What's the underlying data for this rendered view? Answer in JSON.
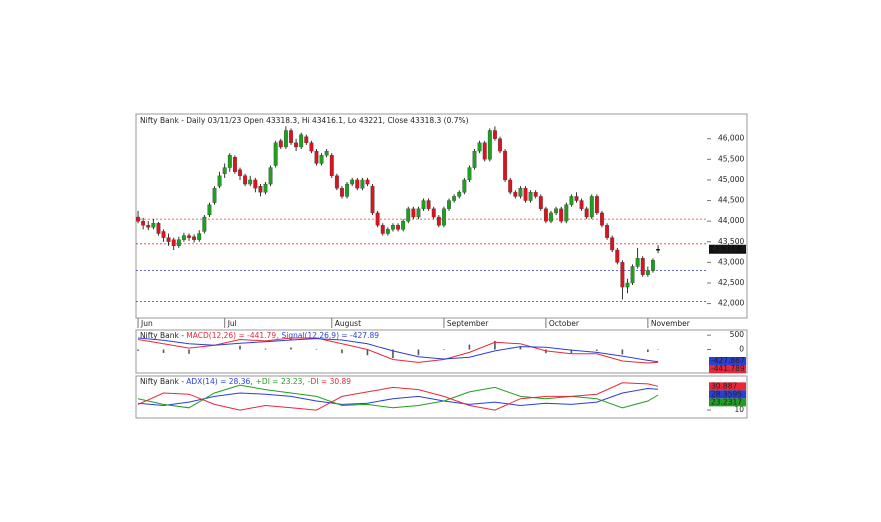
{
  "chart_data": [
    {
      "type": "candlestick",
      "title": "Nifty Bank - Daily 03/11/23 Open 43318.3, Hi 43416.1, Lo 43221, Close 43318.3 (0.7%)",
      "xlim": [
        -0.4,
        111.6
      ],
      "xticks": [
        {
          "value": 0,
          "label": "Jun"
        },
        {
          "value": 17,
          "label": "Jul"
        },
        {
          "value": 38,
          "label": "August"
        },
        {
          "value": 60,
          "label": "September"
        },
        {
          "value": 80,
          "label": "October"
        },
        {
          "value": 100,
          "label": "November"
        }
      ],
      "ylim": [
        41650,
        46600
      ],
      "yticks": [
        {
          "value": 42000,
          "label": "42,000"
        },
        {
          "value": 42500,
          "label": "42,500"
        },
        {
          "value": 43000,
          "label": "43,000"
        },
        {
          "value": 43500,
          "label": "43,500"
        },
        {
          "value": 44000,
          "label": "44,000"
        },
        {
          "value": 44500,
          "label": "44,500"
        },
        {
          "value": 45000,
          "label": "45,000"
        },
        {
          "value": 45500,
          "label": "45,500"
        },
        {
          "value": 46000,
          "label": "46,000"
        }
      ],
      "up_color": "#1f9e1f",
      "down_color": "#d9141e",
      "last_label": "43,318.3",
      "levels": [
        {
          "value": 44050,
          "color": "#e8382e"
        },
        {
          "value": 43450,
          "color": "#e8382e"
        },
        {
          "value": 42800,
          "color": "#3a3ad0"
        },
        {
          "value": 42050,
          "color": "#3a3ad0"
        }
      ],
      "ohlc": [
        [
          44100,
          44250,
          43950,
          44000
        ],
        [
          44000,
          44080,
          43800,
          43900
        ],
        [
          43900,
          44000,
          43780,
          43850
        ],
        [
          43850,
          44050,
          43800,
          43950
        ],
        [
          43950,
          43980,
          43650,
          43700
        ],
        [
          43750,
          43800,
          43500,
          43600
        ],
        [
          43600,
          43700,
          43400,
          43500
        ],
        [
          43550,
          43600,
          43300,
          43400
        ],
        [
          43400,
          43620,
          43350,
          43550
        ],
        [
          43550,
          43720,
          43500,
          43650
        ],
        [
          43650,
          43700,
          43520,
          43600
        ],
        [
          43620,
          43680,
          43480,
          43550
        ],
        [
          43550,
          43780,
          43500,
          43700
        ],
        [
          43750,
          44150,
          43700,
          44100
        ],
        [
          44150,
          44450,
          44100,
          44400
        ],
        [
          44450,
          44850,
          44400,
          44800
        ],
        [
          44850,
          45200,
          44800,
          45100
        ],
        [
          45150,
          45400,
          45050,
          45300
        ],
        [
          45300,
          45650,
          45200,
          45600
        ],
        [
          45550,
          45600,
          45150,
          45200
        ],
        [
          45250,
          45300,
          45000,
          45100
        ],
        [
          45100,
          45150,
          44850,
          44900
        ],
        [
          44900,
          45100,
          44850,
          45000
        ],
        [
          45000,
          45050,
          44700,
          44800
        ],
        [
          44850,
          44900,
          44600,
          44700
        ],
        [
          44700,
          44950,
          44650,
          44900
        ],
        [
          44900,
          45350,
          44850,
          45300
        ],
        [
          45350,
          45950,
          45300,
          45900
        ],
        [
          45950,
          46000,
          45750,
          45800
        ],
        [
          45800,
          46300,
          45750,
          46200
        ],
        [
          46200,
          46250,
          45850,
          45900
        ],
        [
          45900,
          46000,
          45700,
          45800
        ],
        [
          45800,
          46150,
          45750,
          46100
        ],
        [
          46050,
          46100,
          45850,
          45900
        ],
        [
          45900,
          45950,
          45650,
          45700
        ],
        [
          45700,
          45750,
          45350,
          45400
        ],
        [
          45400,
          45650,
          45350,
          45600
        ],
        [
          45600,
          45750,
          45550,
          45700
        ],
        [
          45600,
          45650,
          45050,
          45100
        ],
        [
          45100,
          45150,
          44750,
          44800
        ],
        [
          44800,
          44850,
          44550,
          44600
        ],
        [
          44600,
          44950,
          44550,
          44900
        ],
        [
          44900,
          45050,
          44850,
          45000
        ],
        [
          45000,
          45050,
          44750,
          44800
        ],
        [
          44800,
          45050,
          44750,
          45000
        ],
        [
          45000,
          45050,
          44850,
          44900
        ],
        [
          44850,
          44900,
          44150,
          44200
        ],
        [
          44200,
          44250,
          43850,
          43900
        ],
        [
          43900,
          43950,
          43650,
          43700
        ],
        [
          43700,
          43850,
          43650,
          43800
        ],
        [
          43800,
          43950,
          43750,
          43900
        ],
        [
          43900,
          43950,
          43750,
          43800
        ],
        [
          43800,
          44050,
          43750,
          44000
        ],
        [
          44000,
          44350,
          43950,
          44300
        ],
        [
          44300,
          44350,
          44050,
          44100
        ],
        [
          44100,
          44350,
          44050,
          44300
        ],
        [
          44300,
          44550,
          44250,
          44500
        ],
        [
          44500,
          44550,
          44250,
          44300
        ],
        [
          44300,
          44350,
          44050,
          44100
        ],
        [
          44100,
          44150,
          43850,
          43900
        ],
        [
          43900,
          44350,
          43850,
          44300
        ],
        [
          44300,
          44550,
          44250,
          44500
        ],
        [
          44500,
          44650,
          44450,
          44600
        ],
        [
          44600,
          44750,
          44550,
          44700
        ],
        [
          44700,
          45050,
          44650,
          45000
        ],
        [
          45000,
          45350,
          44950,
          45300
        ],
        [
          45300,
          45750,
          45250,
          45700
        ],
        [
          45700,
          45950,
          45650,
          45900
        ],
        [
          45900,
          45950,
          45450,
          45500
        ],
        [
          45500,
          46250,
          45450,
          46200
        ],
        [
          46200,
          46300,
          45950,
          46000
        ],
        [
          46000,
          46050,
          45650,
          45700
        ],
        [
          45700,
          45750,
          44950,
          45000
        ],
        [
          45000,
          45050,
          44650,
          44700
        ],
        [
          44700,
          44750,
          44550,
          44600
        ],
        [
          44600,
          44850,
          44550,
          44800
        ],
        [
          44800,
          44850,
          44450,
          44500
        ],
        [
          44500,
          44750,
          44450,
          44700
        ],
        [
          44700,
          44750,
          44550,
          44600
        ],
        [
          44600,
          44650,
          44250,
          44300
        ],
        [
          44300,
          44350,
          43950,
          44000
        ],
        [
          44000,
          44250,
          43950,
          44200
        ],
        [
          44200,
          44350,
          44150,
          44300
        ],
        [
          44300,
          44350,
          43950,
          44000
        ],
        [
          44000,
          44450,
          43950,
          44400
        ],
        [
          44400,
          44650,
          44350,
          44600
        ],
        [
          44600,
          44700,
          44450,
          44500
        ],
        [
          44500,
          44550,
          44250,
          44300
        ],
        [
          44300,
          44350,
          44050,
          44100
        ],
        [
          44100,
          44650,
          44050,
          44600
        ],
        [
          44600,
          44650,
          44150,
          44200
        ],
        [
          44200,
          44250,
          43850,
          43900
        ],
        [
          43900,
          43950,
          43550,
          43600
        ],
        [
          43600,
          43650,
          43250,
          43300
        ],
        [
          43300,
          43350,
          42950,
          43000
        ],
        [
          43000,
          43050,
          42100,
          42400
        ],
        [
          42400,
          42600,
          42250,
          42500
        ],
        [
          42500,
          42950,
          42450,
          42900
        ],
        [
          42900,
          43350,
          42850,
          43100
        ],
        [
          43100,
          43150,
          42650,
          42700
        ],
        [
          42700,
          42900,
          42650,
          42800
        ],
        [
          42800,
          43100,
          42750,
          43050
        ],
        [
          43318.3,
          43416.1,
          43221,
          43318.3
        ]
      ]
    },
    {
      "type": "line",
      "prefix": "Nifty Bank - ",
      "xlim": [
        -0.4,
        111.6
      ],
      "x": [
        0,
        5,
        10,
        15,
        20,
        25,
        30,
        35,
        40,
        45,
        50,
        55,
        60,
        65,
        70,
        75,
        80,
        85,
        90,
        95,
        100,
        102
      ],
      "ylim": [
        -820,
        680
      ],
      "yticks": [
        0,
        500
      ],
      "histogram": {
        "color": "#555555",
        "values": [
          -50,
          -120,
          -150,
          0,
          130,
          30,
          70,
          20,
          -130,
          -200,
          -300,
          -200,
          -20,
          170,
          300,
          100,
          -130,
          -130,
          -50,
          -170,
          -90,
          -13.9
        ]
      },
      "series": [
        {
          "name": "MACD(12,26) = -441.79,",
          "color": "#e8283a",
          "end_label": "-441.789",
          "values": [
            350,
            200,
            50,
            150,
            350,
            300,
            400,
            400,
            200,
            0,
            -350,
            -450,
            -350,
            -100,
            250,
            200,
            -50,
            -150,
            -150,
            -400,
            -470,
            -441.79
          ]
        },
        {
          "name": "Signal(12,26,9) = -427.89",
          "color": "#2b3fd6",
          "end_label": "-427.887",
          "values": [
            400,
            320,
            200,
            150,
            220,
            270,
            330,
            380,
            330,
            200,
            -50,
            -250,
            -330,
            -270,
            -50,
            100,
            80,
            -20,
            -100,
            -230,
            -380,
            -427.89
          ]
        }
      ]
    },
    {
      "type": "line",
      "prefix": "Nifty Bank - ",
      "xlim": [
        -0.4,
        111.6
      ],
      "x": [
        0,
        5,
        10,
        15,
        20,
        25,
        30,
        35,
        40,
        45,
        50,
        55,
        60,
        65,
        70,
        75,
        80,
        85,
        90,
        95,
        100,
        102
      ],
      "ylim": [
        3,
        40
      ],
      "yticks": [
        10
      ],
      "series": [
        {
          "name": "ADX(14) = 28.36,",
          "color": "#2b3fd6",
          "end_label": "28.3595",
          "values": [
            16,
            14,
            17,
            22,
            25,
            24,
            22,
            18,
            15,
            16,
            20,
            22,
            18,
            15,
            17,
            14,
            16,
            15,
            17,
            25,
            29,
            28.36
          ]
        },
        {
          "name": "+DI = 23.23,",
          "color": "#1f9e1f",
          "end_label": "23.2317",
          "values": [
            20,
            15,
            12,
            25,
            32,
            28,
            25,
            22,
            14,
            15,
            12,
            14,
            18,
            26,
            30,
            22,
            20,
            22,
            20,
            12,
            18,
            23.23
          ]
        },
        {
          "name": "-DI = 30.89",
          "color": "#e8283a",
          "end_label": "30.887",
          "values": [
            15,
            25,
            24,
            15,
            10,
            14,
            12,
            10,
            22,
            26,
            30,
            28,
            22,
            14,
            10,
            20,
            22,
            22,
            24,
            34,
            33,
            30.89
          ]
        }
      ]
    }
  ]
}
